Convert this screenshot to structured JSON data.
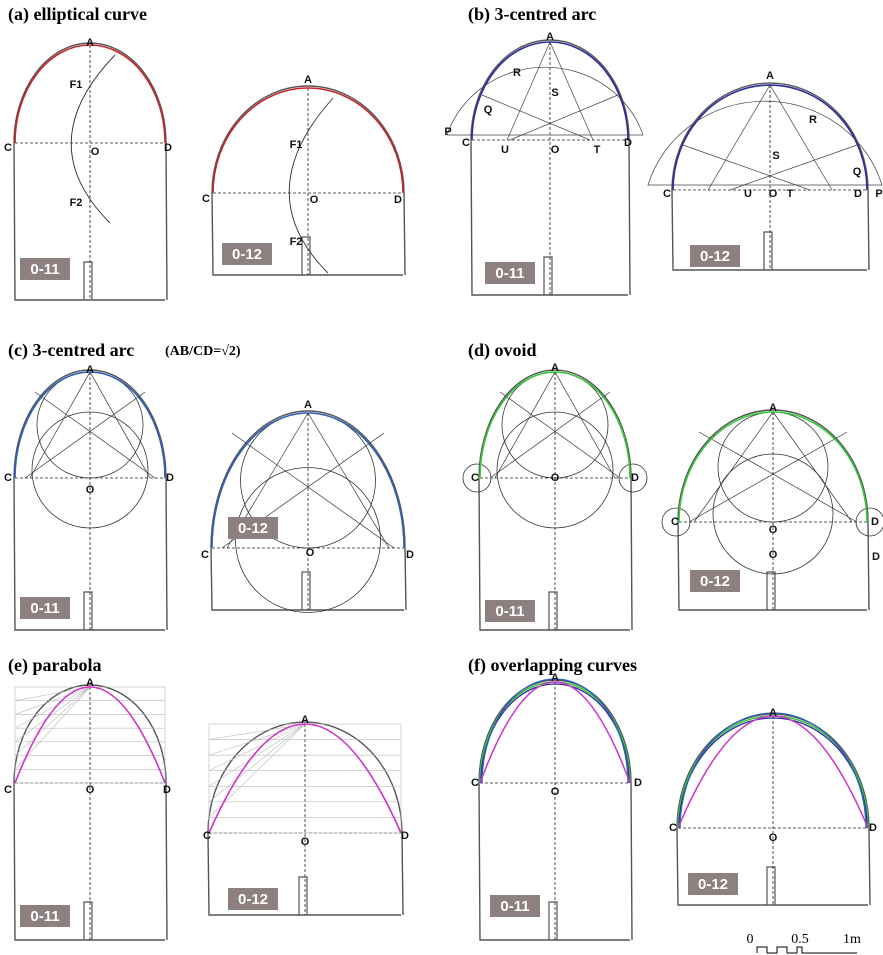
{
  "panels": [
    {
      "title": "(a) elliptical curve",
      "diagrams": [
        {
          "badge": "0-11",
          "labels": [
            "A",
            "F1",
            "C",
            "O",
            "D",
            "F2"
          ]
        },
        {
          "badge": "0-12",
          "labels": [
            "A",
            "F1",
            "C",
            "O",
            "D",
            "F2"
          ]
        }
      ]
    },
    {
      "title": "(b) 3-centred arc",
      "diagrams": [
        {
          "badge": "0-11",
          "labels": [
            "A",
            "R",
            "S",
            "Q",
            "P",
            "C",
            "U",
            "O",
            "T",
            "D"
          ]
        },
        {
          "badge": "0-12",
          "labels": [
            "A",
            "R",
            "S",
            "Q",
            "C",
            "U",
            "O",
            "T",
            "D",
            "P"
          ]
        }
      ]
    },
    {
      "title": "(c) 3-centred arc",
      "note": "(AB/CD=√2)",
      "diagrams": [
        {
          "badge": "0-11",
          "labels": [
            "A",
            "C",
            "O",
            "D"
          ]
        },
        {
          "badge": "0-12",
          "labels": [
            "A",
            "C",
            "O",
            "D"
          ]
        }
      ]
    },
    {
      "title": "(d) ovoid",
      "diagrams": [
        {
          "badge": "0-11",
          "labels": [
            "A",
            "C",
            "O",
            "D"
          ]
        },
        {
          "badge": "0-12",
          "labels": [
            "A",
            "C",
            "O",
            "D",
            "O",
            "D"
          ]
        }
      ]
    },
    {
      "title": "(e) parabola",
      "diagrams": [
        {
          "badge": "0-11",
          "labels": [
            "A",
            "C",
            "O",
            "D"
          ]
        },
        {
          "badge": "0-12",
          "labels": [
            "A",
            "C",
            "O",
            "D"
          ]
        }
      ]
    },
    {
      "title": "(f) overlapping curves",
      "diagrams": [
        {
          "badge": "0-11",
          "labels": [
            "A",
            "C",
            "O",
            "D"
          ]
        },
        {
          "badge": "0-12",
          "labels": [
            "A",
            "C",
            "O",
            "D"
          ]
        }
      ]
    }
  ],
  "scale": {
    "labels": [
      "0",
      "0.5",
      "1m"
    ]
  }
}
